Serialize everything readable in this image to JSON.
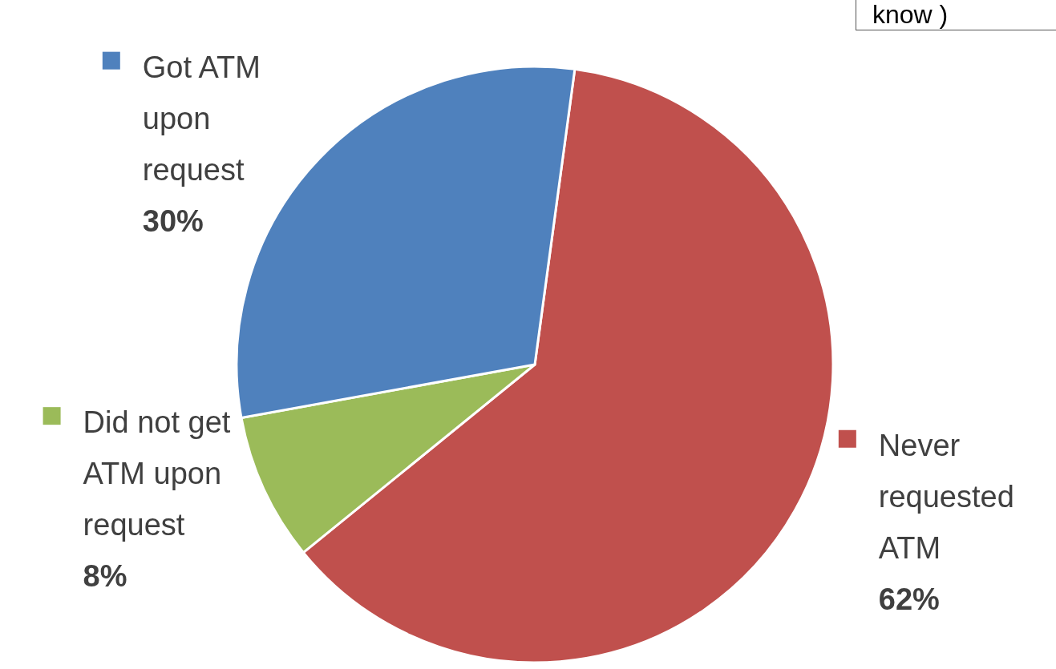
{
  "chart_data": {
    "type": "pie",
    "categories": [
      "Never requested ATM",
      "Did not get ATM upon request",
      "Got ATM upon request"
    ],
    "values": [
      62,
      8,
      30
    ],
    "value_labels": [
      "62%",
      "8%",
      "30%"
    ],
    "colors": [
      "#c0504d",
      "#9bbb59",
      "#4f81bd"
    ],
    "legend": "left",
    "annotations": [
      "know )"
    ]
  }
}
